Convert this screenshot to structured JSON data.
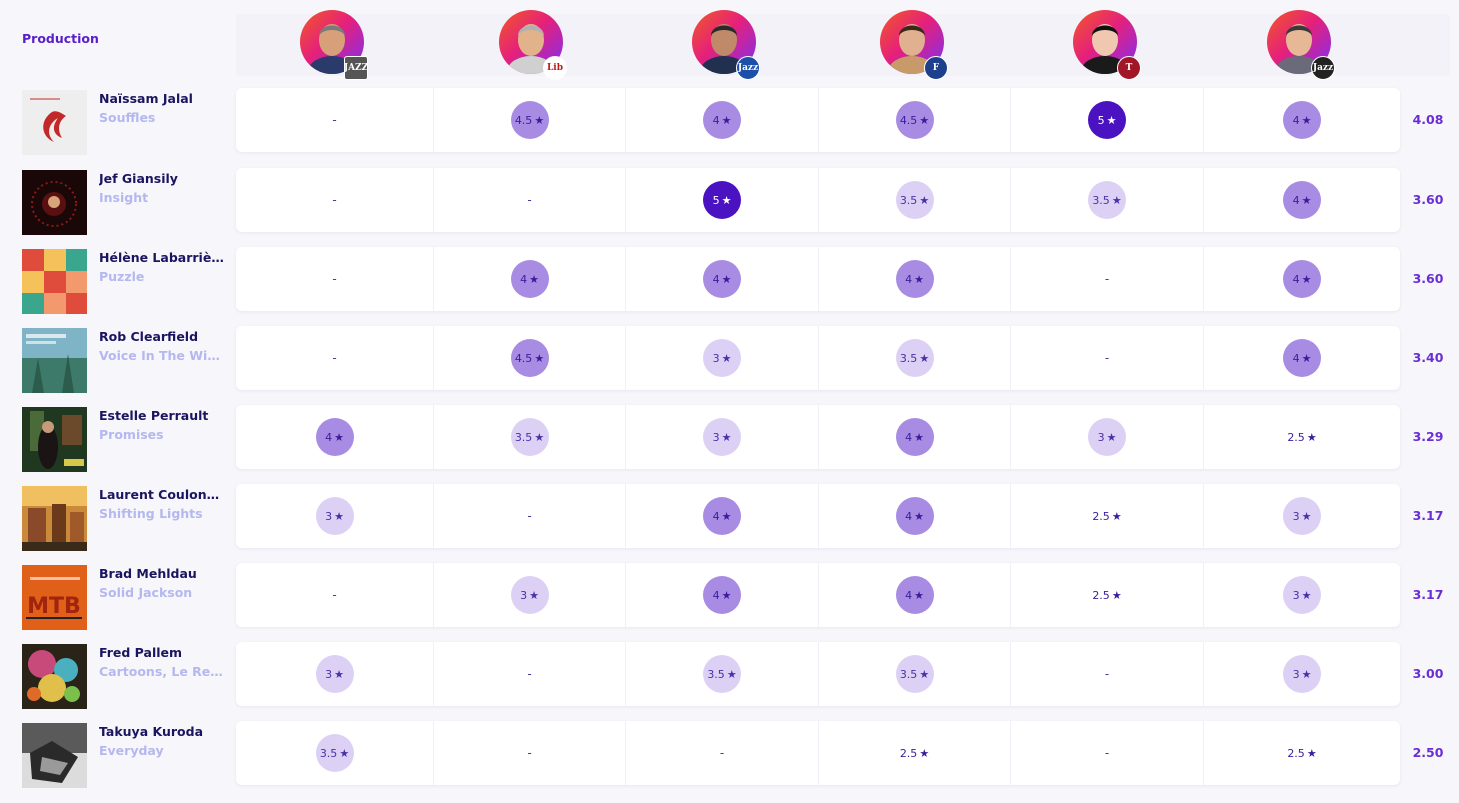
{
  "header": {
    "section_title": "Production"
  },
  "critics": [
    {
      "badge_text": "JAZZ",
      "badge_color": "#555555"
    },
    {
      "badge_text": "Lib",
      "badge_color": "#ffffff"
    },
    {
      "badge_text": "Jazz",
      "badge_color": "#1b4fa8"
    },
    {
      "badge_text": "F",
      "badge_color": "#1d3f8c"
    },
    {
      "badge_text": "T",
      "badge_color": "#a01828"
    },
    {
      "badge_text": "Jazz",
      "badge_color": "#222222"
    }
  ],
  "rows": [
    {
      "artist": "Naïssam Jalal",
      "album": "Souffles",
      "average": "4.08",
      "ratings": [
        "-",
        "4.5",
        "4",
        "4.5",
        "5",
        "4"
      ]
    },
    {
      "artist": "Jef Giansily",
      "album": "Insight",
      "average": "3.60",
      "ratings": [
        "-",
        "-",
        "5",
        "3.5",
        "3.5",
        "4"
      ]
    },
    {
      "artist": "Hélène Labarrière",
      "album": "Puzzle",
      "average": "3.60",
      "ratings": [
        "-",
        "4",
        "4",
        "4",
        "-",
        "4"
      ]
    },
    {
      "artist": "Rob Clearfield",
      "album": "Voice In The Wild...",
      "average": "3.40",
      "ratings": [
        "-",
        "4.5",
        "3",
        "3.5",
        "-",
        "4"
      ]
    },
    {
      "artist": "Estelle Perrault",
      "album": "Promises",
      "average": "3.29",
      "ratings": [
        "4",
        "3.5",
        "3",
        "4",
        "3",
        "2.5"
      ]
    },
    {
      "artist": "Laurent Coulondre",
      "album": "Shifting Lights",
      "average": "3.17",
      "ratings": [
        "3",
        "-",
        "4",
        "4",
        "2.5",
        "3"
      ]
    },
    {
      "artist": "Brad Mehldau",
      "album": "Solid Jackson",
      "average": "3.17",
      "ratings": [
        "-",
        "3",
        "4",
        "4",
        "2.5",
        "3"
      ]
    },
    {
      "artist": "Fred Pallem",
      "album": "Cartoons, Le Ret...",
      "average": "3.00",
      "ratings": [
        "3",
        "-",
        "3.5",
        "3.5",
        "-",
        "3"
      ]
    },
    {
      "artist": "Takuya Kuroda",
      "album": "Everyday",
      "average": "2.50",
      "ratings": [
        "3.5",
        "-",
        "-",
        "2.5",
        "-",
        "2.5"
      ]
    }
  ],
  "icons": {
    "star": "★"
  },
  "colors": {
    "accent": "#5a20c8",
    "rating_low": "#dcd1f5",
    "rating_mid": "#a88be3",
    "rating_top": "#4a12c0",
    "artist_text": "#1b1560",
    "album_text": "#b4b8ee",
    "average_text": "#6a2fd4"
  }
}
